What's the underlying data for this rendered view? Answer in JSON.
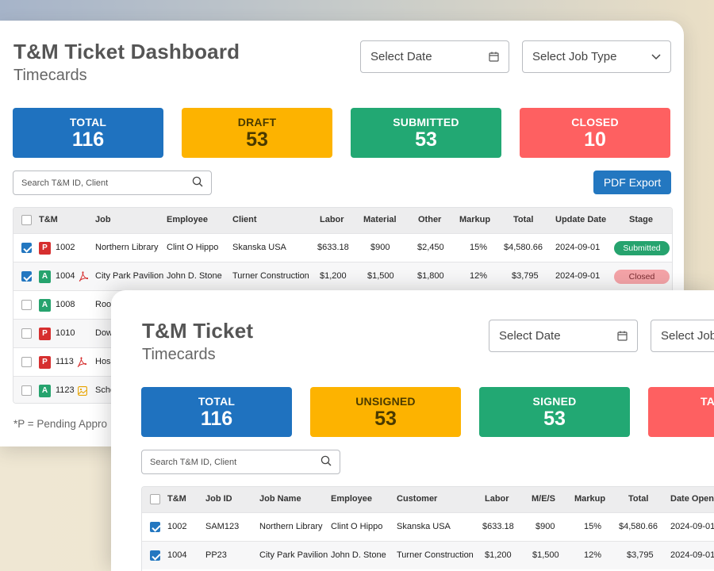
{
  "back": {
    "title": "T&M Ticket Dashboard",
    "subtitle": "Timecards",
    "date_placeholder": "Select Date",
    "jobtype_placeholder": "Select Job Type",
    "stats": [
      {
        "label": "TOTAL",
        "value": "116",
        "color": "#1f72bf"
      },
      {
        "label": "DRAFT",
        "value": "53",
        "color": "#fdb300"
      },
      {
        "label": "SUBMITTED",
        "value": "53",
        "color": "#22a873"
      },
      {
        "label": "CLOSED",
        "value": "10",
        "color": "#fe6061"
      }
    ],
    "search_placeholder": "Search T&M ID, Client",
    "export_label": "PDF Export",
    "columns": [
      "T&M",
      "Job",
      "Employee",
      "Client",
      "Labor",
      "Material",
      "Other",
      "Markup",
      "Total",
      "Update Date",
      "Stage"
    ],
    "rows": [
      {
        "checked": true,
        "type": "P",
        "id": "1002",
        "has_pdf": false,
        "job": "Northern Library",
        "employee": "Clint O Hippo",
        "client": "Skanska USA",
        "labor": "$633.18",
        "material": "$900",
        "other": "$2,450",
        "markup": "15%",
        "total": "$4,580.66",
        "date": "2024-09-01",
        "stage": "Submitted"
      },
      {
        "checked": true,
        "type": "A",
        "id": "1004",
        "has_pdf": true,
        "job": "City Park Pavilion",
        "employee": "John D. Stone",
        "client": "Turner Construction",
        "labor": "$1,200",
        "material": "$1,500",
        "other": "$1,800",
        "markup": "12%",
        "total": "$3,795",
        "date": "2024-09-01",
        "stage": "Closed"
      },
      {
        "checked": false,
        "type": "A",
        "id": "1008",
        "job": "Roof"
      },
      {
        "checked": false,
        "type": "P",
        "id": "1010",
        "job": "Dow"
      },
      {
        "checked": false,
        "type": "P",
        "id": "1113",
        "has_pdf": true,
        "job": "Hosp"
      },
      {
        "checked": false,
        "type": "A",
        "id": "1123",
        "has_image": true,
        "job": "Scho"
      }
    ],
    "footnote": "*P = Pending Appro"
  },
  "front": {
    "title": "T&M Ticket",
    "subtitle": "Timecards",
    "date_placeholder": "Select Date",
    "job_placeholder": "Select Job",
    "stats": [
      {
        "label": "TOTAL",
        "value": "116",
        "color": "#1f72bf"
      },
      {
        "label": "UNSIGNED",
        "value": "53",
        "color": "#fdb300"
      },
      {
        "label": "SIGNED",
        "value": "53",
        "color": "#22a873"
      },
      {
        "label": "TA",
        "value": "",
        "color": "#fe6061"
      }
    ],
    "search_placeholder": "Search T&M ID, Client",
    "columns": [
      "T&M",
      "Job ID",
      "Job Name",
      "Employee",
      "Customer",
      "Labor",
      "M/E/S",
      "Markup",
      "Total",
      "Date Opene"
    ],
    "rows": [
      {
        "checked": true,
        "id": "1002",
        "job_id": "SAM123",
        "job_name": "Northern Library",
        "employee": "Clint O Hippo",
        "customer": "Skanska USA",
        "labor": "$633.18",
        "mes": "$900",
        "markup": "15%",
        "total": "$4,580.66",
        "date": "2024-09-01"
      },
      {
        "checked": true,
        "id": "1004",
        "job_id": "PP23",
        "job_name": "City Park Pavilion",
        "employee": "John D. Stone",
        "customer": "Turner Construction",
        "labor": "$1,200",
        "mes": "$1,500",
        "markup": "12%",
        "total": "$3,795",
        "date": "2024-09-01"
      }
    ]
  }
}
